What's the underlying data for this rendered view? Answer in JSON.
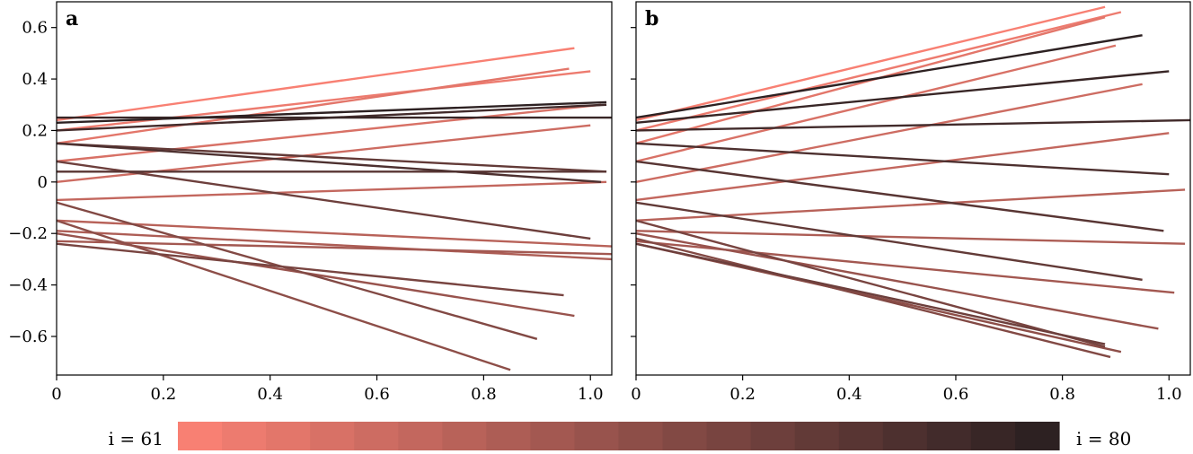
{
  "chart_data": [
    {
      "type": "line",
      "panel_label": "a",
      "xlim": [
        0,
        1.04
      ],
      "ylim": [
        -0.75,
        0.7
      ],
      "xticks": [
        "0",
        "0.2",
        "0.4",
        "0.6",
        "0.8",
        "1.0"
      ],
      "yticks": [
        "0.6",
        "0.4",
        "0.2",
        "0",
        "−0.2",
        "−0.4",
        "−0.6"
      ],
      "colormap": {
        "start_index": 61,
        "end_index": 80,
        "start_color": "#f88073",
        "end_color": "#2d2122"
      },
      "series": [
        {
          "i": 61,
          "x": [
            0,
            0.97
          ],
          "y": [
            0.24,
            0.52
          ]
        },
        {
          "i": 62,
          "x": [
            0,
            1.0
          ],
          "y": [
            0.2,
            0.43
          ]
        },
        {
          "i": 63,
          "x": [
            0,
            0.96
          ],
          "y": [
            0.15,
            0.44
          ]
        },
        {
          "i": 64,
          "x": [
            0,
            1.02
          ],
          "y": [
            0.08,
            0.3
          ]
        },
        {
          "i": 65,
          "x": [
            0,
            1.0
          ],
          "y": [
            0.0,
            0.22
          ]
        },
        {
          "i": 66,
          "x": [
            0,
            1.03
          ],
          "y": [
            -0.07,
            0.0
          ]
        },
        {
          "i": 67,
          "x": [
            0,
            1.04
          ],
          "y": [
            -0.15,
            -0.25
          ]
        },
        {
          "i": 68,
          "x": [
            0,
            1.04
          ],
          "y": [
            -0.19,
            -0.3
          ]
        },
        {
          "i": 69,
          "x": [
            0,
            1.04
          ],
          "y": [
            -0.23,
            -0.28
          ]
        },
        {
          "i": 70,
          "x": [
            0,
            0.97
          ],
          "y": [
            -0.2,
            -0.52
          ]
        },
        {
          "i": 71,
          "x": [
            0,
            0.85
          ],
          "y": [
            -0.15,
            -0.73
          ]
        },
        {
          "i": 72,
          "x": [
            0,
            0.9
          ],
          "y": [
            -0.08,
            -0.61
          ]
        },
        {
          "i": 73,
          "x": [
            0,
            0.95
          ],
          "y": [
            -0.24,
            -0.44
          ]
        },
        {
          "i": 74,
          "x": [
            0,
            1.0
          ],
          "y": [
            0.08,
            -0.22
          ]
        },
        {
          "i": 75,
          "x": [
            0,
            1.03
          ],
          "y": [
            0.15,
            0.04
          ]
        },
        {
          "i": 76,
          "x": [
            0,
            1.03
          ],
          "y": [
            0.04,
            0.04
          ]
        },
        {
          "i": 77,
          "x": [
            0,
            1.02
          ],
          "y": [
            0.15,
            0.0
          ]
        },
        {
          "i": 78,
          "x": [
            0,
            1.03
          ],
          "y": [
            0.2,
            0.3
          ]
        },
        {
          "i": 79,
          "x": [
            0,
            1.04
          ],
          "y": [
            0.25,
            0.25
          ]
        },
        {
          "i": 80,
          "x": [
            0,
            1.03
          ],
          "y": [
            0.23,
            0.31
          ]
        }
      ]
    },
    {
      "type": "line",
      "panel_label": "b",
      "xlim": [
        0,
        1.04
      ],
      "ylim": [
        -0.75,
        0.7
      ],
      "xticks": [
        "0",
        "0.2",
        "0.4",
        "0.6",
        "0.8",
        "1.0"
      ],
      "colormap": {
        "start_index": 61,
        "end_index": 80,
        "start_color": "#f88073",
        "end_color": "#2d2122"
      },
      "series": [
        {
          "i": 61,
          "x": [
            0,
            0.88
          ],
          "y": [
            0.24,
            0.68
          ]
        },
        {
          "i": 62,
          "x": [
            0,
            0.91
          ],
          "y": [
            0.2,
            0.66
          ]
        },
        {
          "i": 63,
          "x": [
            0,
            0.88
          ],
          "y": [
            0.15,
            0.64
          ]
        },
        {
          "i": 64,
          "x": [
            0,
            0.9
          ],
          "y": [
            0.08,
            0.53
          ]
        },
        {
          "i": 65,
          "x": [
            0,
            0.95
          ],
          "y": [
            0.0,
            0.38
          ]
        },
        {
          "i": 66,
          "x": [
            0,
            1.0
          ],
          "y": [
            -0.07,
            0.19
          ]
        },
        {
          "i": 67,
          "x": [
            0,
            1.03
          ],
          "y": [
            -0.15,
            -0.03
          ]
        },
        {
          "i": 68,
          "x": [
            0,
            1.03
          ],
          "y": [
            -0.19,
            -0.24
          ]
        },
        {
          "i": 69,
          "x": [
            0,
            1.01
          ],
          "y": [
            -0.23,
            -0.43
          ]
        },
        {
          "i": 70,
          "x": [
            0,
            0.98
          ],
          "y": [
            -0.2,
            -0.57
          ]
        },
        {
          "i": 71,
          "x": [
            0,
            0.91
          ],
          "y": [
            -0.24,
            -0.66
          ]
        },
        {
          "i": 72,
          "x": [
            0,
            0.89
          ],
          "y": [
            -0.22,
            -0.68
          ]
        },
        {
          "i": 73,
          "x": [
            0,
            0.88
          ],
          "y": [
            -0.15,
            -0.64
          ]
        },
        {
          "i": 74,
          "x": [
            0,
            0.88
          ],
          "y": [
            -0.24,
            -0.63
          ]
        },
        {
          "i": 75,
          "x": [
            0,
            0.95
          ],
          "y": [
            -0.08,
            -0.38
          ]
        },
        {
          "i": 76,
          "x": [
            0,
            0.99
          ],
          "y": [
            0.08,
            -0.19
          ]
        },
        {
          "i": 77,
          "x": [
            0,
            1.0
          ],
          "y": [
            0.15,
            0.03
          ]
        },
        {
          "i": 78,
          "x": [
            0,
            1.04
          ],
          "y": [
            0.2,
            0.24
          ]
        },
        {
          "i": 79,
          "x": [
            0,
            1.0
          ],
          "y": [
            0.23,
            0.43
          ]
        },
        {
          "i": 80,
          "x": [
            0,
            0.95
          ],
          "y": [
            0.25,
            0.57
          ]
        }
      ]
    }
  ],
  "colorbar": {
    "left_label": "i = 61",
    "right_label": "i = 80",
    "segments": 20
  }
}
